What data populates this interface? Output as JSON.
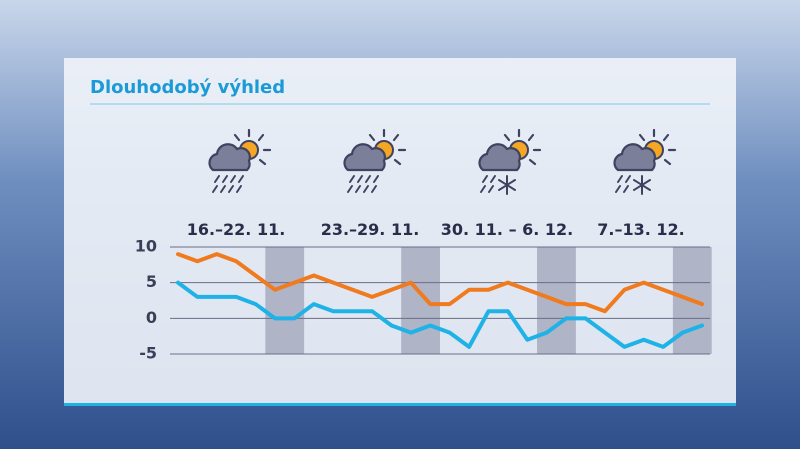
{
  "chart_data": {
    "type": "line",
    "title": "Dlouhodobý výhled",
    "week_labels": [
      "16.–22. 11.",
      "23.–29. 11.",
      "30. 11. – 6. 12.",
      "7.–13. 12."
    ],
    "categories": [
      null,
      null,
      null,
      null,
      null,
      null,
      null,
      null,
      null,
      null,
      null,
      null,
      null,
      null,
      null,
      null,
      null,
      null,
      null,
      null,
      null,
      null,
      null,
      null,
      null,
      null,
      null,
      null
    ],
    "series": [
      {
        "color": "#f07a1e",
        "values": [
          9,
          8,
          9,
          8,
          6,
          4,
          5,
          6,
          5,
          4,
          3,
          4,
          5,
          2,
          2,
          4,
          4,
          5,
          4,
          3,
          2,
          2,
          1,
          4,
          5,
          4,
          3,
          2
        ]
      },
      {
        "color": "#1fb2e6",
        "values": [
          5,
          3,
          3,
          3,
          2,
          0,
          0,
          2,
          1,
          1,
          1,
          -1,
          -2,
          -1,
          -2,
          -4,
          1,
          1,
          -3,
          -2,
          0,
          0,
          -2,
          -4,
          -3,
          -4,
          -2,
          -1
        ]
      }
    ],
    "ylim": [
      -5,
      10
    ],
    "yticks": [
      -5,
      0,
      5,
      10
    ],
    "grid": true
  }
}
